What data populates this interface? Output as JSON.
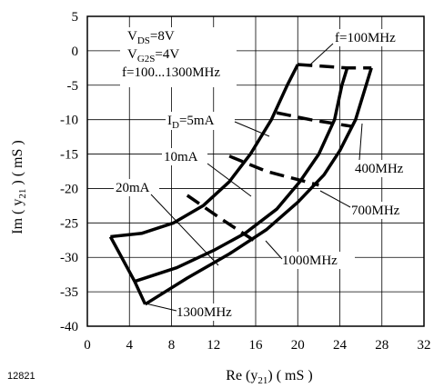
{
  "chart_data": {
    "type": "line",
    "xlabel": {
      "prefix": "Re (y",
      "sub": "21",
      "suffix": ")   ( mS )"
    },
    "ylabel": {
      "prefix": "Im ( y",
      "sub": "21",
      "suffix": " )   ( mS )"
    },
    "xlim": [
      0,
      32
    ],
    "ylim": [
      -40,
      5
    ],
    "x_ticks": [
      0,
      4,
      8,
      12,
      16,
      20,
      24,
      28,
      32
    ],
    "y_ticks": [
      5,
      0,
      -5,
      -10,
      -15,
      -20,
      -25,
      -30,
      -35,
      -40
    ],
    "grid": true,
    "conditions": [
      {
        "main": "V",
        "sub": "DS",
        "rest": "=8V"
      },
      {
        "main": "V",
        "sub": "G2S",
        "rest": "=4V"
      },
      {
        "main": "f=100...1300MHz",
        "sub": "",
        "rest": ""
      }
    ],
    "current_labels": [
      {
        "main": "I",
        "sub": "D",
        "rest": "=5mA"
      },
      {
        "main": "10mA",
        "sub": "",
        "rest": ""
      },
      {
        "main": "20mA",
        "sub": "",
        "rest": ""
      }
    ],
    "frequency_labels": [
      "f=100MHz",
      "400MHz",
      "700MHz",
      "1000MHz",
      "1300MHz"
    ],
    "figure_code": "12821",
    "series": [
      {
        "name": "5mA",
        "style": "solid",
        "x": [
          20.0,
          19.0,
          17.5,
          15.5,
          13.5,
          11.0,
          8.2,
          5.2,
          2.2
        ],
        "y": [
          -2.0,
          -5.0,
          -10.0,
          -15.0,
          -19.0,
          -22.5,
          -25.0,
          -26.5,
          -27.0
        ]
      },
      {
        "name": "10mA",
        "style": "solid",
        "x": [
          24.7,
          24.2,
          23.5,
          22.0,
          20.2,
          18.0,
          15.0,
          12.0,
          8.5,
          4.5
        ],
        "y": [
          -2.5,
          -5.0,
          -10.0,
          -15.0,
          -19.0,
          -23.0,
          -26.5,
          -29.0,
          -31.5,
          -33.5
        ]
      },
      {
        "name": "20mA",
        "style": "solid",
        "x": [
          27.0,
          26.5,
          25.5,
          24.0,
          22.5,
          20.0,
          17.0,
          13.5,
          9.5,
          5.5
        ],
        "y": [
          -2.5,
          -5.0,
          -10.0,
          -14.5,
          -18.0,
          -22.0,
          -26.0,
          -29.5,
          -33.0,
          -36.8
        ]
      },
      {
        "name": "100MHz",
        "style": "dashed",
        "x": [
          20.0,
          24.7,
          27.0
        ],
        "y": [
          -2.0,
          -2.5,
          -2.5
        ]
      },
      {
        "name": "400MHz",
        "style": "dashed",
        "x": [
          18.0,
          21.2,
          25.2
        ],
        "y": [
          -9.0,
          -10.0,
          -11.0
        ]
      },
      {
        "name": "700MHz",
        "style": "dashed",
        "x": [
          13.5,
          17.0,
          22.0
        ],
        "y": [
          -15.3,
          -17.5,
          -19.5
        ]
      },
      {
        "name": "1000MHz",
        "style": "dashed",
        "x": [
          9.5,
          12.8,
          16.3
        ],
        "y": [
          -21.0,
          -24.5,
          -28.0
        ]
      },
      {
        "name": "1300MHz",
        "style": "solid",
        "x": [
          2.2,
          4.5,
          5.5
        ],
        "y": [
          -27.0,
          -33.5,
          -36.8
        ]
      }
    ]
  }
}
